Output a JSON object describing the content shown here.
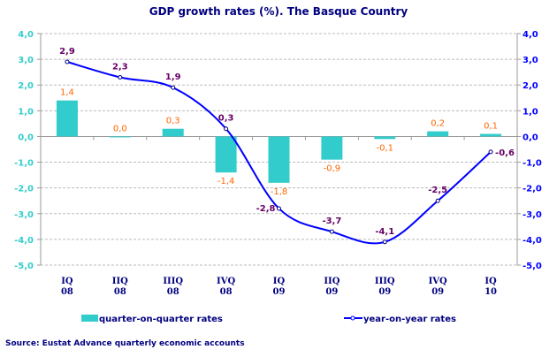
{
  "chart_data": {
    "type": "bar+line",
    "title": "GDP growth rates (%). The Basque Country",
    "categories": [
      [
        "IQ",
        "08"
      ],
      [
        "IIQ",
        "08"
      ],
      [
        "IIIQ",
        "08"
      ],
      [
        "IVQ",
        "08"
      ],
      [
        "IQ",
        "09"
      ],
      [
        "IIQ",
        "09"
      ],
      [
        "IIIQ",
        "09"
      ],
      [
        "IVQ",
        "09"
      ],
      [
        "IQ",
        "10"
      ]
    ],
    "series": [
      {
        "name": "quarter-on-quarter rates",
        "type": "bar",
        "axis": "left",
        "color": "#33CCCC",
        "label_color": "#FF6600",
        "values": [
          1.4,
          0.0,
          0.3,
          -1.4,
          -1.8,
          -0.9,
          -0.1,
          0.2,
          0.1
        ],
        "labels": [
          "1,4",
          "0,0",
          "0,3",
          "-1,4",
          "-1,8",
          "-0,9",
          "-0,1",
          "0,2",
          "0,1"
        ]
      },
      {
        "name": "year-on-year rates",
        "type": "line",
        "axis": "right",
        "color": "#0000FF",
        "label_color": "#660066",
        "smooth": true,
        "values": [
          2.9,
          2.3,
          1.9,
          0.3,
          -2.8,
          -3.7,
          -4.1,
          -2.5,
          -0.6
        ],
        "labels": [
          "2,9",
          "2,3",
          "1,9",
          "0,3",
          "-2,8",
          "-3,7",
          "-4,1",
          "-2,5",
          "-0,6"
        ]
      }
    ],
    "ylim": [
      -5,
      4
    ],
    "yticks": [
      4,
      3,
      2,
      1,
      0,
      -1,
      -2,
      -3,
      -4,
      -5
    ],
    "ytick_labels_left": [
      "4,0",
      "3,0",
      "2,0",
      "1,0",
      "0,0",
      "-1,0",
      "-2,0",
      "-3,0",
      "-4,0",
      "-5,0"
    ],
    "ytick_labels_right": [
      "4,0",
      "3,0",
      "2,0",
      "1,0",
      "0,0",
      "-1,0",
      "-2,0",
      "-3,0",
      "-4,0",
      "-5,0"
    ],
    "left_axis_color": "#33CCCC",
    "right_axis_color": "#0000FF",
    "grid": "horizontal dashed",
    "legend": "bottom",
    "source": "Source: Eustat Advance quarterly economic accounts"
  }
}
